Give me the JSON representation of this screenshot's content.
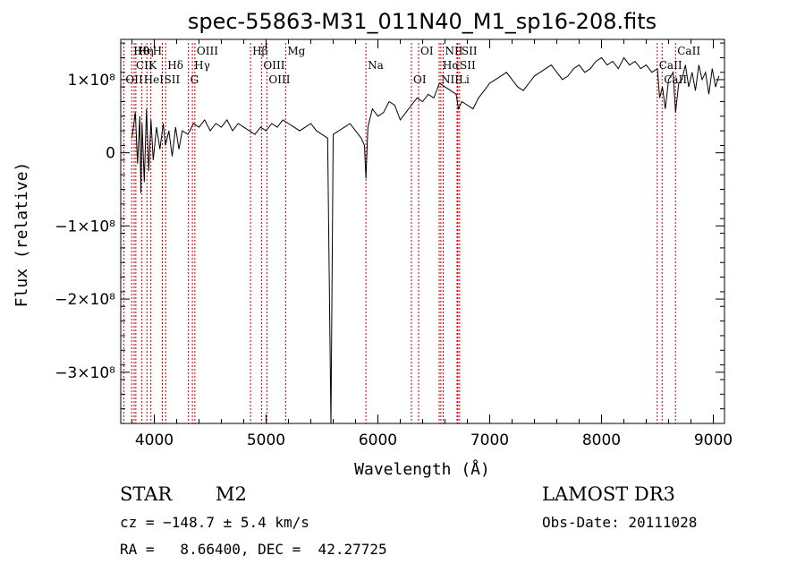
{
  "chart_data": {
    "type": "line",
    "title": "spec-55863-M31_011N40_M1_sp16-208.fits",
    "xlabel": "Wavelength (Å)",
    "ylabel": "Flux (relative)",
    "xlim": [
      3700,
      9100
    ],
    "ylim": [
      -370000000,
      155000000
    ],
    "x_ticks": [
      4000,
      5000,
      6000,
      7000,
      8000,
      9000
    ],
    "x_tick_labels": [
      "4000",
      "5000",
      "6000",
      "7000",
      "8000",
      "9000"
    ],
    "y_ticks": [
      100000000,
      0,
      -100000000,
      -200000000,
      -300000000
    ],
    "y_tick_labels": [
      "1×10⁸",
      "0",
      "−1×10⁸",
      "−2×10⁸",
      "−3×10⁸"
    ],
    "series": [
      {
        "name": "spectrum",
        "x": [
          3800,
          3830,
          3850,
          3870,
          3880,
          3890,
          3910,
          3930,
          3950,
          3970,
          3990,
          4020,
          4050,
          4080,
          4100,
          4130,
          4160,
          4190,
          4220,
          4250,
          4300,
          4350,
          4400,
          4450,
          4500,
          4550,
          4600,
          4650,
          4700,
          4750,
          4800,
          4850,
          4900,
          4950,
          5000,
          5050,
          5100,
          5150,
          5200,
          5250,
          5300,
          5350,
          5400,
          5450,
          5500,
          5550,
          5580,
          5600,
          5650,
          5700,
          5750,
          5800,
          5850,
          5880,
          5893,
          5910,
          5950,
          6000,
          6050,
          6100,
          6150,
          6200,
          6250,
          6300,
          6350,
          6400,
          6450,
          6500,
          6550,
          6600,
          6650,
          6700,
          6720,
          6750,
          6800,
          6850,
          6900,
          6950,
          7000,
          7050,
          7100,
          7150,
          7200,
          7250,
          7300,
          7350,
          7400,
          7450,
          7500,
          7550,
          7600,
          7650,
          7700,
          7750,
          7800,
          7850,
          7900,
          7950,
          8000,
          8050,
          8100,
          8150,
          8200,
          8250,
          8300,
          8350,
          8400,
          8450,
          8500,
          8520,
          8545,
          8570,
          8600,
          8640,
          8662,
          8690,
          8720,
          8750,
          8780,
          8810,
          8840,
          8870,
          8900,
          8930,
          8960,
          8990,
          9020,
          9050
        ],
        "y": [
          20000000,
          55000000,
          -15000000,
          50000000,
          -55000000,
          40000000,
          -40000000,
          60000000,
          -25000000,
          45000000,
          -10000000,
          35000000,
          5000000,
          40000000,
          10000000,
          30000000,
          -5000000,
          35000000,
          5000000,
          30000000,
          25000000,
          40000000,
          35000000,
          45000000,
          30000000,
          40000000,
          35000000,
          45000000,
          30000000,
          40000000,
          35000000,
          30000000,
          25000000,
          35000000,
          30000000,
          40000000,
          35000000,
          45000000,
          40000000,
          35000000,
          30000000,
          35000000,
          40000000,
          30000000,
          25000000,
          20000000,
          -370000000,
          25000000,
          30000000,
          35000000,
          40000000,
          30000000,
          20000000,
          10000000,
          -35000000,
          35000000,
          60000000,
          50000000,
          55000000,
          70000000,
          65000000,
          45000000,
          55000000,
          65000000,
          75000000,
          70000000,
          80000000,
          75000000,
          95000000,
          90000000,
          85000000,
          80000000,
          60000000,
          70000000,
          65000000,
          60000000,
          75000000,
          85000000,
          95000000,
          100000000,
          105000000,
          110000000,
          100000000,
          90000000,
          85000000,
          95000000,
          105000000,
          110000000,
          115000000,
          120000000,
          110000000,
          100000000,
          105000000,
          115000000,
          120000000,
          110000000,
          115000000,
          125000000,
          130000000,
          120000000,
          125000000,
          115000000,
          130000000,
          120000000,
          125000000,
          115000000,
          120000000,
          110000000,
          115000000,
          75000000,
          90000000,
          60000000,
          100000000,
          110000000,
          55000000,
          95000000,
          100000000,
          120000000,
          90000000,
          110000000,
          85000000,
          120000000,
          100000000,
          110000000,
          80000000,
          115000000,
          90000000,
          105000000
        ]
      }
    ],
    "line_markers": [
      {
        "label": "Hθ",
        "wavelength": 3798
      },
      {
        "label": "CII",
        "wavelength": 3820
      },
      {
        "label": "OII",
        "wavelength": 3727
      },
      {
        "label": "Hη",
        "wavelength": 3835
      },
      {
        "label": "K",
        "wavelength": 3934
      },
      {
        "label": "HeI",
        "wavelength": 3889
      },
      {
        "label": "H",
        "wavelength": 3969
      },
      {
        "label": "Hδ",
        "wavelength": 4102
      },
      {
        "label": "SII",
        "wavelength": 4072
      },
      {
        "label": "OIII",
        "wavelength": 4363
      },
      {
        "label": "Hγ",
        "wavelength": 4341
      },
      {
        "label": "G",
        "wavelength": 4305
      },
      {
        "label": "Hβ",
        "wavelength": 4861
      },
      {
        "label": "OIII",
        "wavelength": 4959
      },
      {
        "label": "OIII",
        "wavelength": 5007
      },
      {
        "label": "Mg",
        "wavelength": 5175
      },
      {
        "label": "Na",
        "wavelength": 5893
      },
      {
        "label": "OI",
        "wavelength": 6300
      },
      {
        "label": "OI",
        "wavelength": 6364
      },
      {
        "label": "Hα",
        "wavelength": 6563
      },
      {
        "label": "NII",
        "wavelength": 6548
      },
      {
        "label": "NII",
        "wavelength": 6584
      },
      {
        "label": "SII",
        "wavelength": 6716
      },
      {
        "label": "Li",
        "wavelength": 6708
      },
      {
        "label": "SII",
        "wavelength": 6731
      },
      {
        "label": "CaII",
        "wavelength": 8498
      },
      {
        "label": "CaII",
        "wavelength": 8542
      },
      {
        "label": "CaII",
        "wavelength": 8662
      }
    ]
  },
  "info": {
    "object_class": "STAR",
    "subclass": "M2",
    "survey": "LAMOST DR3",
    "cz": "cz = −148.7 ± 5.4 km/s",
    "obs_date": "Obs-Date: 20111028",
    "coords": "RA =   8.66400, DEC =  42.27725"
  },
  "colors": {
    "line_marker": "#cc0000",
    "spectrum": "#000000"
  }
}
